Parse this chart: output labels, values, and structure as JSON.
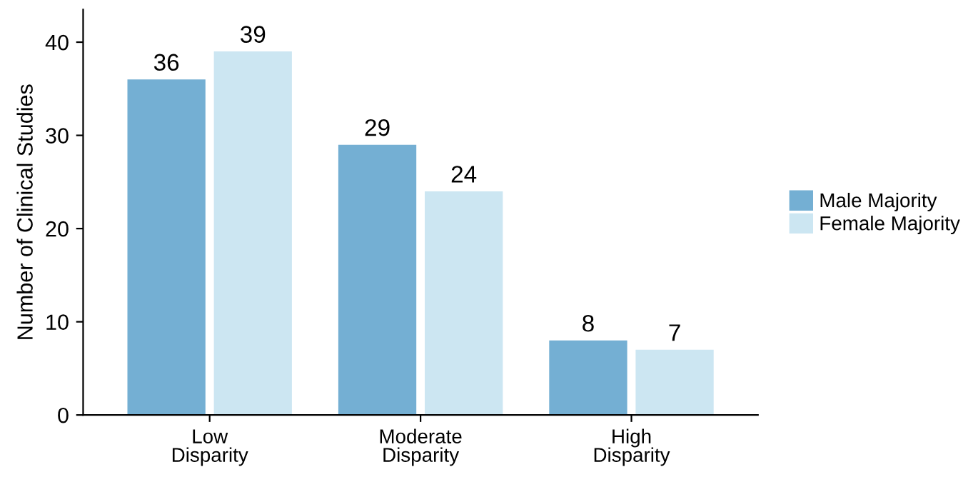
{
  "chart_data": {
    "type": "bar",
    "ylabel": "Number of Clinical Studies",
    "categories": [
      "Low\nDisparity",
      "Moderate\nDisparity",
      "High\nDisparity"
    ],
    "series": [
      {
        "name": "Male Majority",
        "color": "#74afd3",
        "values": [
          36,
          29,
          8
        ]
      },
      {
        "name": "Female Majority",
        "color": "#cce6f2",
        "values": [
          39,
          24,
          7
        ]
      }
    ],
    "ylim": [
      0,
      43.5
    ],
    "yticks": [
      0,
      10,
      20,
      30,
      40
    ],
    "data_labels": true,
    "legend": "right",
    "grid": false
  }
}
